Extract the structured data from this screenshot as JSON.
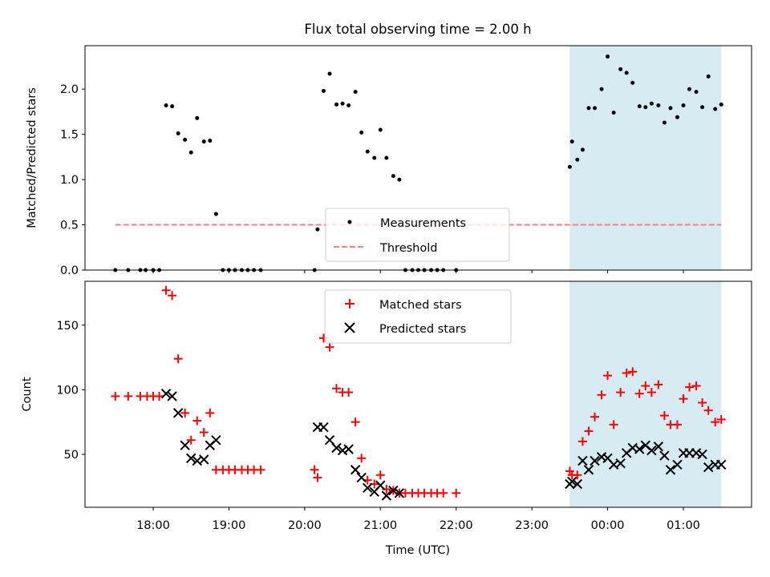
{
  "chart_data": [
    {
      "type": "scatter",
      "title": "Flux total observing time = 2.00 h",
      "xlabel": "",
      "ylabel": "Matched/Predicted stars",
      "ylim": [
        0,
        2.48
      ],
      "xlim_hours": [
        17.1,
        25.9
      ],
      "yticks": [
        "0.0",
        "0.5",
        "1.0",
        "1.5",
        "2.0"
      ],
      "ytick_values": [
        0,
        0.5,
        1.0,
        1.5,
        2.0
      ],
      "highlight": {
        "from": 23.5,
        "to": 25.5,
        "color": "#add8e6"
      },
      "threshold": {
        "label": "Threshold",
        "value": 0.5,
        "from": 17.5,
        "to": 25.5,
        "color": "#ff7f7f"
      },
      "legend": {
        "position": "lower-center",
        "entries": [
          "Measurements",
          "Threshold"
        ]
      },
      "series": [
        {
          "name": "Measurements",
          "color": "#000000",
          "points": [
            [
              17.5,
              0
            ],
            [
              17.67,
              0
            ],
            [
              17.83,
              0
            ],
            [
              17.9,
              0
            ],
            [
              18.0,
              0
            ],
            [
              18.08,
              0
            ],
            [
              18.17,
              1.82
            ],
            [
              18.25,
              1.81
            ],
            [
              18.33,
              1.51
            ],
            [
              18.42,
              1.44
            ],
            [
              18.5,
              1.3
            ],
            [
              18.58,
              1.68
            ],
            [
              18.67,
              1.42
            ],
            [
              18.75,
              1.43
            ],
            [
              18.83,
              0.62
            ],
            [
              18.92,
              0
            ],
            [
              19.0,
              0
            ],
            [
              19.08,
              0
            ],
            [
              19.17,
              0
            ],
            [
              19.25,
              0
            ],
            [
              19.33,
              0
            ],
            [
              19.42,
              0
            ],
            [
              20.13,
              0
            ],
            [
              20.17,
              0.45
            ],
            [
              20.25,
              1.98
            ],
            [
              20.33,
              2.17
            ],
            [
              20.42,
              1.83
            ],
            [
              20.5,
              1.84
            ],
            [
              20.58,
              1.82
            ],
            [
              20.67,
              1.97
            ],
            [
              20.75,
              1.52
            ],
            [
              20.83,
              1.31
            ],
            [
              20.92,
              1.24
            ],
            [
              21.0,
              1.55
            ],
            [
              21.08,
              1.24
            ],
            [
              21.17,
              1.04
            ],
            [
              21.25,
              1.0
            ],
            [
              21.33,
              0
            ],
            [
              21.42,
              0
            ],
            [
              21.5,
              0
            ],
            [
              21.58,
              0
            ],
            [
              21.67,
              0
            ],
            [
              21.75,
              0
            ],
            [
              21.83,
              0
            ],
            [
              22.0,
              0
            ],
            [
              23.5,
              1.14
            ],
            [
              23.53,
              1.42
            ],
            [
              23.6,
              1.22
            ],
            [
              23.67,
              1.33
            ],
            [
              23.75,
              1.79
            ],
            [
              23.83,
              1.79
            ],
            [
              23.92,
              2.0
            ],
            [
              24.0,
              2.36
            ],
            [
              24.08,
              1.74
            ],
            [
              24.17,
              2.22
            ],
            [
              24.25,
              2.18
            ],
            [
              24.33,
              2.07
            ],
            [
              24.42,
              1.81
            ],
            [
              24.5,
              1.8
            ],
            [
              24.58,
              1.84
            ],
            [
              24.67,
              1.82
            ],
            [
              24.75,
              1.63
            ],
            [
              24.83,
              1.79
            ],
            [
              24.92,
              1.69
            ],
            [
              25.0,
              1.82
            ],
            [
              25.08,
              2.0
            ],
            [
              25.17,
              1.97
            ],
            [
              25.25,
              1.8
            ],
            [
              25.33,
              2.14
            ],
            [
              25.42,
              1.78
            ],
            [
              25.5,
              1.83
            ]
          ]
        }
      ]
    },
    {
      "type": "scatter",
      "title": "",
      "xlabel": "Time (UTC)",
      "ylabel": "Count",
      "ylim": [
        9,
        184
      ],
      "xlim_hours": [
        17.1,
        25.9
      ],
      "yticks": [
        "50",
        "100",
        "150"
      ],
      "ytick_values": [
        50,
        100,
        150
      ],
      "xticks": [
        "18:00",
        "19:00",
        "20:00",
        "21:00",
        "22:00",
        "23:00",
        "00:00",
        "01:00"
      ],
      "xtick_values": [
        18,
        19,
        20,
        21,
        22,
        23,
        24,
        25
      ],
      "highlight": {
        "from": 23.5,
        "to": 25.5,
        "color": "#add8e6"
      },
      "legend": {
        "position": "upper-center",
        "entries": [
          "Matched stars",
          "Predicted stars"
        ]
      },
      "series": [
        {
          "name": "Matched stars",
          "marker": "plus",
          "color": "#ff0000",
          "points": [
            [
              17.5,
              95
            ],
            [
              17.67,
              95
            ],
            [
              17.83,
              95
            ],
            [
              17.92,
              95
            ],
            [
              18.0,
              95
            ],
            [
              18.08,
              95
            ],
            [
              18.17,
              177
            ],
            [
              18.25,
              173
            ],
            [
              18.33,
              124
            ],
            [
              18.42,
              82
            ],
            [
              18.5,
              61
            ],
            [
              18.58,
              76
            ],
            [
              18.67,
              67
            ],
            [
              18.75,
              82
            ],
            [
              18.83,
              38
            ],
            [
              18.92,
              38
            ],
            [
              19.0,
              38
            ],
            [
              19.08,
              38
            ],
            [
              19.17,
              38
            ],
            [
              19.25,
              38
            ],
            [
              19.33,
              38
            ],
            [
              19.42,
              38
            ],
            [
              20.13,
              38
            ],
            [
              20.17,
              32
            ],
            [
              20.25,
              140
            ],
            [
              20.33,
              133
            ],
            [
              20.42,
              101
            ],
            [
              20.5,
              98
            ],
            [
              20.58,
              98
            ],
            [
              20.67,
              75
            ],
            [
              20.75,
              47
            ],
            [
              20.83,
              30
            ],
            [
              20.92,
              27
            ],
            [
              21.0,
              34
            ],
            [
              21.08,
              23
            ],
            [
              21.17,
              22
            ],
            [
              21.25,
              20
            ],
            [
              21.33,
              20
            ],
            [
              21.42,
              20
            ],
            [
              21.5,
              20
            ],
            [
              21.58,
              20
            ],
            [
              21.67,
              20
            ],
            [
              21.75,
              20
            ],
            [
              21.83,
              20
            ],
            [
              22.0,
              20
            ],
            [
              23.5,
              37
            ],
            [
              23.53,
              34
            ],
            [
              23.6,
              34
            ],
            [
              23.67,
              60
            ],
            [
              23.75,
              68
            ],
            [
              23.83,
              79
            ],
            [
              23.92,
              96
            ],
            [
              24.0,
              111
            ],
            [
              24.08,
              73
            ],
            [
              24.17,
              98
            ],
            [
              24.25,
              113
            ],
            [
              24.33,
              114
            ],
            [
              24.42,
              97
            ],
            [
              24.5,
              103
            ],
            [
              24.58,
              98
            ],
            [
              24.67,
              104
            ],
            [
              24.75,
              80
            ],
            [
              24.83,
              73
            ],
            [
              24.92,
              73
            ],
            [
              25.0,
              93
            ],
            [
              25.08,
              102
            ],
            [
              25.17,
              103
            ],
            [
              25.25,
              90
            ],
            [
              25.33,
              84
            ],
            [
              25.42,
              75
            ],
            [
              25.5,
              77
            ]
          ]
        },
        {
          "name": "Predicted stars",
          "marker": "x",
          "color": "#000000",
          "points": [
            [
              18.17,
              97
            ],
            [
              18.25,
              95
            ],
            [
              18.33,
              82
            ],
            [
              18.42,
              57
            ],
            [
              18.5,
              47
            ],
            [
              18.58,
              45
            ],
            [
              18.67,
              46
            ],
            [
              18.75,
              57
            ],
            [
              18.83,
              61
            ],
            [
              20.17,
              71
            ],
            [
              20.25,
              71
            ],
            [
              20.33,
              61
            ],
            [
              20.42,
              55
            ],
            [
              20.5,
              53
            ],
            [
              20.58,
              54
            ],
            [
              20.67,
              38
            ],
            [
              20.75,
              32
            ],
            [
              20.83,
              24
            ],
            [
              20.92,
              21
            ],
            [
              21.0,
              26
            ],
            [
              21.08,
              18
            ],
            [
              21.17,
              22
            ],
            [
              21.25,
              20
            ],
            [
              23.5,
              27
            ],
            [
              23.53,
              29
            ],
            [
              23.6,
              27
            ],
            [
              23.67,
              45
            ],
            [
              23.75,
              38
            ],
            [
              23.83,
              45
            ],
            [
              23.92,
              48
            ],
            [
              24.0,
              47
            ],
            [
              24.08,
              42
            ],
            [
              24.17,
              43
            ],
            [
              24.25,
              51
            ],
            [
              24.33,
              55
            ],
            [
              24.42,
              54
            ],
            [
              24.5,
              57
            ],
            [
              24.58,
              53
            ],
            [
              24.67,
              56
            ],
            [
              24.75,
              49
            ],
            [
              24.83,
              38
            ],
            [
              24.92,
              42
            ],
            [
              25.0,
              51
            ],
            [
              25.08,
              51
            ],
            [
              25.17,
              51
            ],
            [
              25.25,
              50
            ],
            [
              25.33,
              40
            ],
            [
              25.42,
              42
            ],
            [
              25.5,
              42
            ]
          ]
        }
      ]
    }
  ]
}
